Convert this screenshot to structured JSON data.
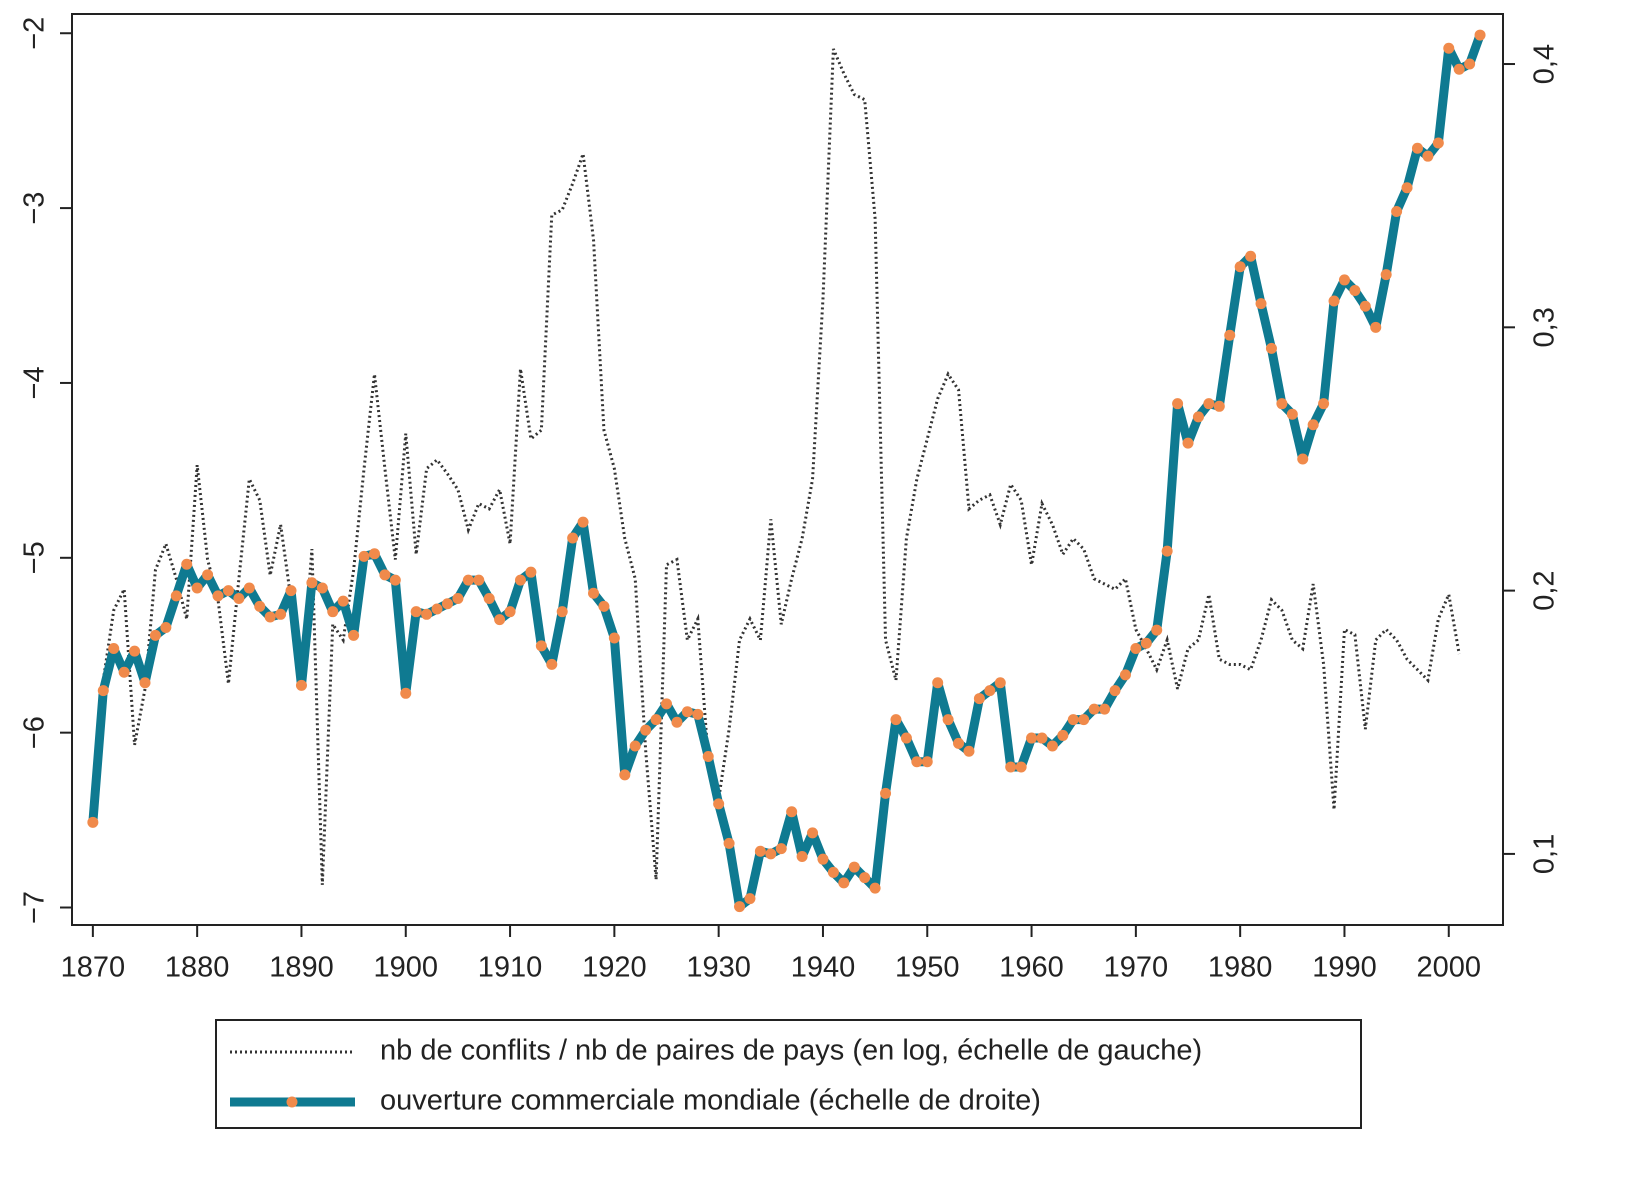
{
  "chart_data": {
    "type": "line",
    "x": [
      1870,
      1871,
      1872,
      1873,
      1874,
      1875,
      1876,
      1877,
      1878,
      1879,
      1880,
      1881,
      1882,
      1883,
      1884,
      1885,
      1886,
      1887,
      1888,
      1889,
      1890,
      1891,
      1892,
      1893,
      1894,
      1895,
      1896,
      1897,
      1898,
      1899,
      1900,
      1901,
      1902,
      1903,
      1904,
      1905,
      1906,
      1907,
      1908,
      1909,
      1910,
      1911,
      1912,
      1913,
      1914,
      1915,
      1916,
      1917,
      1918,
      1919,
      1920,
      1921,
      1922,
      1923,
      1924,
      1925,
      1926,
      1927,
      1928,
      1929,
      1930,
      1931,
      1932,
      1933,
      1934,
      1935,
      1936,
      1937,
      1938,
      1939,
      1940,
      1941,
      1942,
      1943,
      1944,
      1945,
      1946,
      1947,
      1948,
      1949,
      1950,
      1951,
      1952,
      1953,
      1954,
      1955,
      1956,
      1957,
      1958,
      1959,
      1960,
      1961,
      1962,
      1963,
      1964,
      1965,
      1966,
      1967,
      1968,
      1969,
      1970,
      1971,
      1972,
      1973,
      1974,
      1975,
      1976,
      1977,
      1978,
      1979,
      1980,
      1981,
      1982,
      1983,
      1984,
      1985,
      1986,
      1987,
      1988,
      1989,
      1990,
      1991,
      1992,
      1993,
      1994,
      1995,
      1996,
      1997,
      1998,
      1999,
      2000,
      2001,
      2002,
      2003
    ],
    "series": [
      {
        "name": "nb de conflits / nb de paires de pays (en log, échelle de gauche)",
        "color": "#333333",
        "axis": "y",
        "values": [
          null,
          -5.7,
          -5.3,
          -5.18,
          -6.07,
          -5.75,
          -5.07,
          -4.92,
          -5.12,
          -5.35,
          -4.47,
          -5.01,
          -5.24,
          -5.72,
          -5.12,
          -4.55,
          -4.67,
          -5.1,
          -4.81,
          -5.24,
          -5.75,
          -4.95,
          -6.87,
          -5.38,
          -5.47,
          -5.07,
          -4.49,
          -3.95,
          -4.49,
          -5.01,
          -4.29,
          -4.98,
          -4.49,
          -4.44,
          -4.52,
          -4.61,
          -4.84,
          -4.69,
          -4.72,
          -4.61,
          -4.92,
          -3.92,
          -4.32,
          -4.27,
          -3.04,
          -3.01,
          -2.86,
          -2.69,
          -3.18,
          -4.27,
          -4.49,
          -4.89,
          -5.12,
          -6.1,
          -6.84,
          -5.04,
          -5.01,
          -5.47,
          -5.35,
          -6.15,
          -6.38,
          -5.98,
          -5.47,
          -5.35,
          -5.47,
          -4.78,
          -5.38,
          -5.12,
          -4.89,
          -4.55,
          -3.52,
          -2.09,
          -2.23,
          -2.35,
          -2.38,
          -3.06,
          -5.47,
          -5.7,
          -4.89,
          -4.55,
          -4.32,
          -4.09,
          -3.95,
          -4.04,
          -4.72,
          -4.67,
          -4.64,
          -4.81,
          -4.58,
          -4.67,
          -5.04,
          -4.69,
          -4.81,
          -4.98,
          -4.89,
          -4.95,
          -5.12,
          -5.15,
          -5.18,
          -5.12,
          -5.41,
          -5.52,
          -5.64,
          -5.47,
          -5.75,
          -5.52,
          -5.47,
          -5.21,
          -5.58,
          -5.61,
          -5.61,
          -5.64,
          -5.47,
          -5.24,
          -5.3,
          -5.47,
          -5.52,
          -5.15,
          -5.61,
          -6.44,
          -5.41,
          -5.44,
          -5.98,
          -5.47,
          -5.41,
          -5.47,
          -5.58,
          -5.64,
          -5.7,
          -5.35,
          -5.21,
          -5.55,
          null,
          null
        ]
      },
      {
        "name": "ouverture commerciale mondiale (échelle de droite)",
        "color": "#0f7a91",
        "marker_color": "#f08a4b",
        "axis": "y2",
        "values": [
          0.112,
          0.162,
          0.178,
          0.169,
          0.177,
          0.165,
          0.183,
          0.186,
          0.198,
          0.21,
          0.201,
          0.206,
          0.198,
          0.2,
          0.197,
          0.201,
          0.194,
          0.19,
          0.191,
          0.2,
          0.164,
          0.203,
          0.201,
          0.192,
          0.196,
          0.183,
          0.213,
          0.214,
          0.206,
          0.204,
          0.161,
          0.192,
          0.191,
          0.193,
          0.195,
          0.197,
          0.204,
          0.204,
          0.197,
          0.189,
          0.192,
          0.204,
          0.207,
          0.179,
          0.172,
          0.192,
          0.22,
          0.226,
          0.199,
          0.194,
          0.182,
          0.13,
          0.141,
          0.147,
          0.151,
          0.157,
          0.15,
          0.154,
          0.153,
          0.137,
          0.119,
          0.104,
          0.08,
          0.083,
          0.101,
          0.1,
          0.102,
          0.116,
          0.099,
          0.108,
          0.098,
          0.093,
          0.089,
          0.095,
          0.091,
          0.087,
          0.123,
          0.151,
          0.144,
          0.135,
          0.135,
          0.165,
          0.151,
          0.142,
          0.139,
          0.159,
          0.162,
          0.165,
          0.133,
          0.133,
          0.144,
          0.144,
          0.141,
          0.145,
          0.151,
          0.151,
          0.155,
          0.155,
          0.162,
          0.168,
          0.178,
          0.18,
          0.185,
          0.215,
          0.271,
          0.256,
          0.266,
          0.271,
          0.27,
          0.297,
          0.323,
          0.327,
          0.309,
          0.292,
          0.271,
          0.267,
          0.25,
          0.263,
          0.271,
          0.31,
          0.318,
          0.314,
          0.308,
          0.3,
          0.32,
          0.344,
          0.353,
          0.368,
          0.365,
          0.37,
          0.406,
          0.398,
          0.4,
          0.411
        ]
      }
    ],
    "xlim": [
      1868,
      2005.2
    ],
    "xticks": [
      1870,
      1880,
      1890,
      1900,
      1910,
      1920,
      1930,
      1940,
      1950,
      1960,
      1970,
      1980,
      1990,
      2000
    ],
    "ylim": [
      -7.1,
      -1.89
    ],
    "yticks": [
      {
        "value": -7,
        "label": "−7"
      },
      {
        "value": -6,
        "label": "−6"
      },
      {
        "value": -5,
        "label": "−5"
      },
      {
        "value": -4,
        "label": "−4"
      },
      {
        "value": -3,
        "label": "−3"
      },
      {
        "value": -2,
        "label": "−2"
      }
    ],
    "y2lim": [
      0.073,
      0.419
    ],
    "y2ticks": [
      {
        "value": 0.1,
        "label": "0,1"
      },
      {
        "value": 0.2,
        "label": "0,2"
      },
      {
        "value": 0.3,
        "label": "0,3"
      },
      {
        "value": 0.4,
        "label": "0,4"
      }
    ],
    "legend": "bottom"
  }
}
